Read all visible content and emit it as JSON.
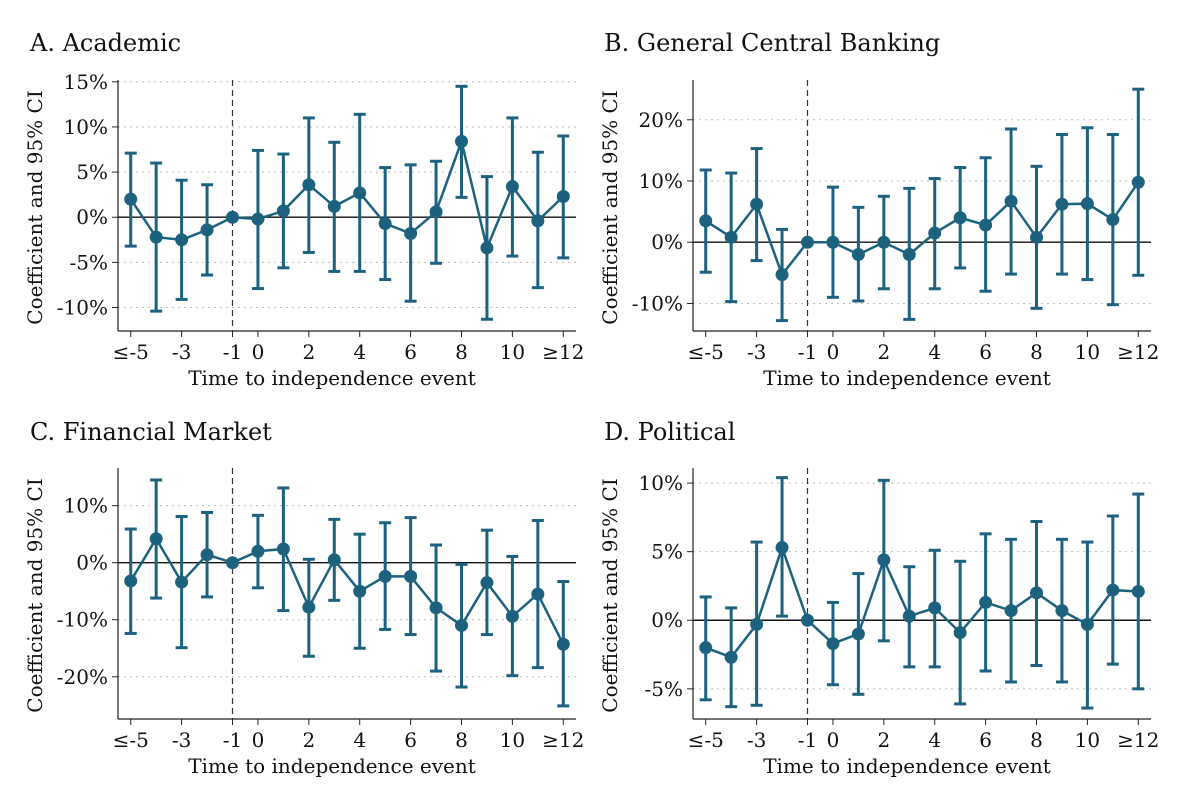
{
  "chart_data": [
    {
      "type": "scatter",
      "title": "A. Academic",
      "xlabel": "Time to independence event",
      "ylabel": "Coefficient and 95% CI",
      "x": [
        -5,
        -4,
        -3,
        -2,
        -1,
        0,
        1,
        2,
        3,
        4,
        5,
        6,
        7,
        8,
        9,
        10,
        11,
        12
      ],
      "y": [
        2.0,
        -2.2,
        -2.5,
        -1.4,
        0.0,
        -0.2,
        0.7,
        3.6,
        1.2,
        2.7,
        -0.7,
        -1.8,
        0.6,
        8.4,
        -3.4,
        3.4,
        -0.4,
        2.3
      ],
      "ci_low": [
        -3.2,
        -10.4,
        -9.1,
        -6.4,
        0.0,
        -7.9,
        -5.6,
        -3.9,
        -6.0,
        -6.0,
        -6.9,
        -9.3,
        -5.1,
        2.2,
        -11.3,
        -4.3,
        -7.8,
        -4.5
      ],
      "ci_high": [
        7.1,
        6.0,
        4.1,
        3.6,
        0.0,
        7.4,
        7.0,
        11.0,
        8.3,
        11.4,
        5.5,
        5.8,
        6.2,
        14.5,
        4.5,
        11.0,
        7.2,
        9.0
      ],
      "xticks": [
        -5,
        -3,
        -1,
        0,
        2,
        4,
        6,
        8,
        10,
        12
      ],
      "xticklabels": [
        "≤-5",
        "-3",
        "-1",
        "0",
        "2",
        "4",
        "6",
        "8",
        "10",
        "≥12"
      ],
      "xlim": [
        -5.5,
        12.5
      ],
      "yticks": [
        15,
        10,
        5,
        0,
        -5,
        -10
      ],
      "yticklabels": [
        "15%",
        "10%",
        "5%",
        "0%",
        "-5%",
        "-10%"
      ],
      "ylim": [
        -12.6,
        15.2
      ],
      "grid": true,
      "reference_line_x": -1,
      "reference_line_y": 0,
      "color": "#1c627f"
    },
    {
      "type": "scatter",
      "title": "B. General Central Banking",
      "xlabel": "Time to independence event",
      "ylabel": "Coefficient and 95% CI",
      "x": [
        -5,
        -4,
        -3,
        -2,
        -1,
        0,
        1,
        2,
        3,
        4,
        5,
        6,
        7,
        8,
        9,
        10,
        11,
        12
      ],
      "y": [
        3.5,
        0.8,
        6.2,
        -5.3,
        0.0,
        0.0,
        -2.0,
        0.0,
        -2.0,
        1.5,
        4.0,
        2.8,
        6.7,
        0.8,
        6.2,
        6.3,
        3.7,
        9.8
      ],
      "ci_low": [
        -4.9,
        -9.7,
        -3.0,
        -12.8,
        0.0,
        -9.0,
        -9.6,
        -7.6,
        -12.6,
        -7.6,
        -4.2,
        -8.0,
        -5.2,
        -10.8,
        -5.2,
        -6.1,
        -10.2,
        -5.4
      ],
      "ci_high": [
        11.8,
        11.3,
        15.3,
        2.1,
        0.0,
        9.0,
        5.7,
        7.5,
        8.8,
        10.4,
        12.2,
        13.8,
        18.5,
        12.4,
        17.6,
        18.7,
        17.6,
        25.0
      ],
      "xticks": [
        -5,
        -3,
        -1,
        0,
        2,
        4,
        6,
        8,
        10,
        12
      ],
      "xticklabels": [
        "≤-5",
        "-3",
        "-1",
        "0",
        "2",
        "4",
        "6",
        "8",
        "10",
        "≥12"
      ],
      "xlim": [
        -5.5,
        12.5
      ],
      "yticks": [
        20,
        10,
        0,
        -10
      ],
      "yticklabels": [
        "20%",
        "10%",
        "0%",
        "-10%"
      ],
      "ylim": [
        -14.5,
        26.5
      ],
      "grid": true,
      "reference_line_x": -1,
      "reference_line_y": 0,
      "color": "#1c627f"
    },
    {
      "type": "scatter",
      "title": "C. Financial Market",
      "xlabel": "Time to independence event",
      "ylabel": "Coefficient and 95% CI",
      "x": [
        -5,
        -4,
        -3,
        -2,
        -1,
        0,
        1,
        2,
        3,
        4,
        5,
        6,
        7,
        8,
        9,
        10,
        11,
        12
      ],
      "y": [
        -3.2,
        4.2,
        -3.4,
        1.4,
        0.0,
        2.0,
        2.4,
        -7.8,
        0.5,
        -5.0,
        -2.4,
        -2.4,
        -7.9,
        -11.0,
        -3.5,
        -9.4,
        -5.5,
        -14.3
      ],
      "ci_low": [
        -12.4,
        -6.2,
        -14.9,
        -6.0,
        0.0,
        -4.4,
        -8.4,
        -16.4,
        -6.6,
        -15.0,
        -11.7,
        -12.6,
        -19.0,
        -21.8,
        -12.6,
        -19.8,
        -18.4,
        -25.1
      ],
      "ci_high": [
        5.9,
        14.5,
        8.1,
        8.8,
        0.0,
        8.3,
        13.1,
        0.6,
        7.6,
        5.0,
        7.0,
        7.9,
        3.1,
        -0.3,
        5.7,
        1.1,
        7.4,
        -3.3
      ],
      "xticks": [
        -5,
        -3,
        -1,
        0,
        2,
        4,
        6,
        8,
        10,
        12
      ],
      "xticklabels": [
        "≤-5",
        "-3",
        "-1",
        "0",
        "2",
        "4",
        "6",
        "8",
        "10",
        "≥12"
      ],
      "xlim": [
        -5.5,
        12.5
      ],
      "yticks": [
        10,
        0,
        -10,
        -20
      ],
      "yticklabels": [
        "10%",
        "0%",
        "-10%",
        "-20%"
      ],
      "ylim": [
        -27.4,
        16.6
      ],
      "grid": true,
      "reference_line_x": -1,
      "reference_line_y": 0,
      "color": "#1c627f"
    },
    {
      "type": "scatter",
      "title": "D. Political",
      "xlabel": "Time to independence event",
      "ylabel": "Coefficient and 95% CI",
      "x": [
        -5,
        -4,
        -3,
        -2,
        -1,
        0,
        1,
        2,
        3,
        4,
        5,
        6,
        7,
        8,
        9,
        10,
        11,
        12
      ],
      "y": [
        -2.0,
        -2.7,
        -0.3,
        5.3,
        0.0,
        -1.7,
        -1.0,
        4.4,
        0.3,
        0.9,
        -0.9,
        1.3,
        0.7,
        2.0,
        0.7,
        -0.3,
        2.2,
        2.1
      ],
      "ci_low": [
        -5.8,
        -6.3,
        -6.2,
        0.3,
        0.0,
        -4.7,
        -5.4,
        -1.5,
        -3.4,
        -3.4,
        -6.1,
        -3.7,
        -4.5,
        -3.3,
        -4.5,
        -6.4,
        -3.2,
        -5.0
      ],
      "ci_high": [
        1.7,
        0.9,
        5.7,
        10.4,
        0.0,
        1.3,
        3.4,
        10.2,
        3.9,
        5.1,
        4.3,
        6.3,
        5.9,
        7.2,
        5.9,
        5.7,
        7.6,
        9.2
      ],
      "xticks": [
        -5,
        -3,
        -1,
        0,
        2,
        4,
        6,
        8,
        10,
        12
      ],
      "xticklabels": [
        "≤-5",
        "-3",
        "-1",
        "0",
        "2",
        "4",
        "6",
        "8",
        "10",
        "≥12"
      ],
      "xlim": [
        -5.5,
        12.5
      ],
      "yticks": [
        10,
        5,
        0,
        -5
      ],
      "yticklabels": [
        "10%",
        "5%",
        "0%",
        "-5%"
      ],
      "ylim": [
        -7.2,
        11.1
      ],
      "grid": true,
      "reference_line_x": -1,
      "reference_line_y": 0,
      "color": "#1c627f"
    }
  ]
}
